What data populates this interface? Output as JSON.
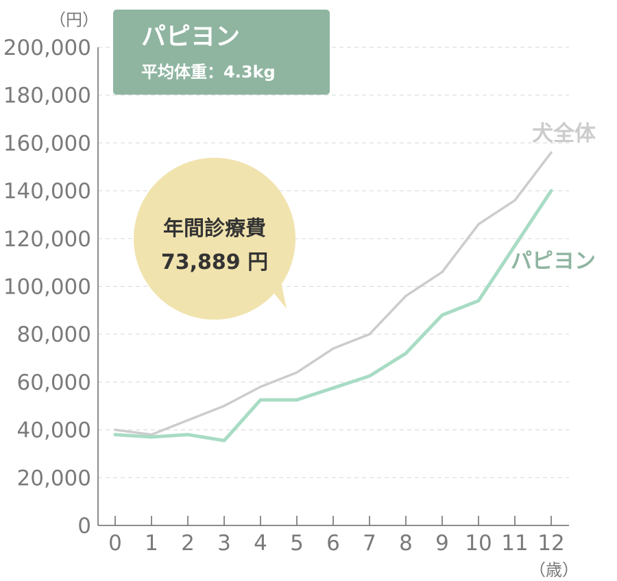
{
  "chart_data": {
    "type": "line",
    "title": "パピヨン",
    "subtitle": "平均体重：4.3kg",
    "y_unit": "（円）",
    "x_unit": "（歳）",
    "categories": [
      "0",
      "1",
      "2",
      "3",
      "4",
      "5",
      "6",
      "7",
      "8",
      "9",
      "10",
      "11",
      "12"
    ],
    "ylim": [
      0,
      200000
    ],
    "yticks": [
      "0",
      "20,000",
      "40,000",
      "60,000",
      "80,000",
      "100,000",
      "120,000",
      "140,000",
      "160,000",
      "180,000",
      "200,000"
    ],
    "grid": true,
    "series": [
      {
        "name": "犬全体",
        "color": "#cccccc",
        "values": [
          40000,
          38000,
          44000,
          50000,
          58000,
          64000,
          74000,
          80000,
          96000,
          106000,
          126000,
          136000,
          156000
        ]
      },
      {
        "name": "パピヨン",
        "color": "#a8dcc4",
        "values": [
          38000,
          37000,
          38000,
          35500,
          52500,
          52500,
          57500,
          62500,
          72000,
          88000,
          94000,
          117000,
          140000
        ]
      }
    ],
    "callout": {
      "line1": "年間診療費",
      "line2": "73,889 円"
    },
    "colors": {
      "title_box": "#8fb5a1",
      "callout_bubble": "#f1e3ae",
      "label_overall": "#cccccc",
      "label_breed": "#8fb5a1"
    }
  }
}
